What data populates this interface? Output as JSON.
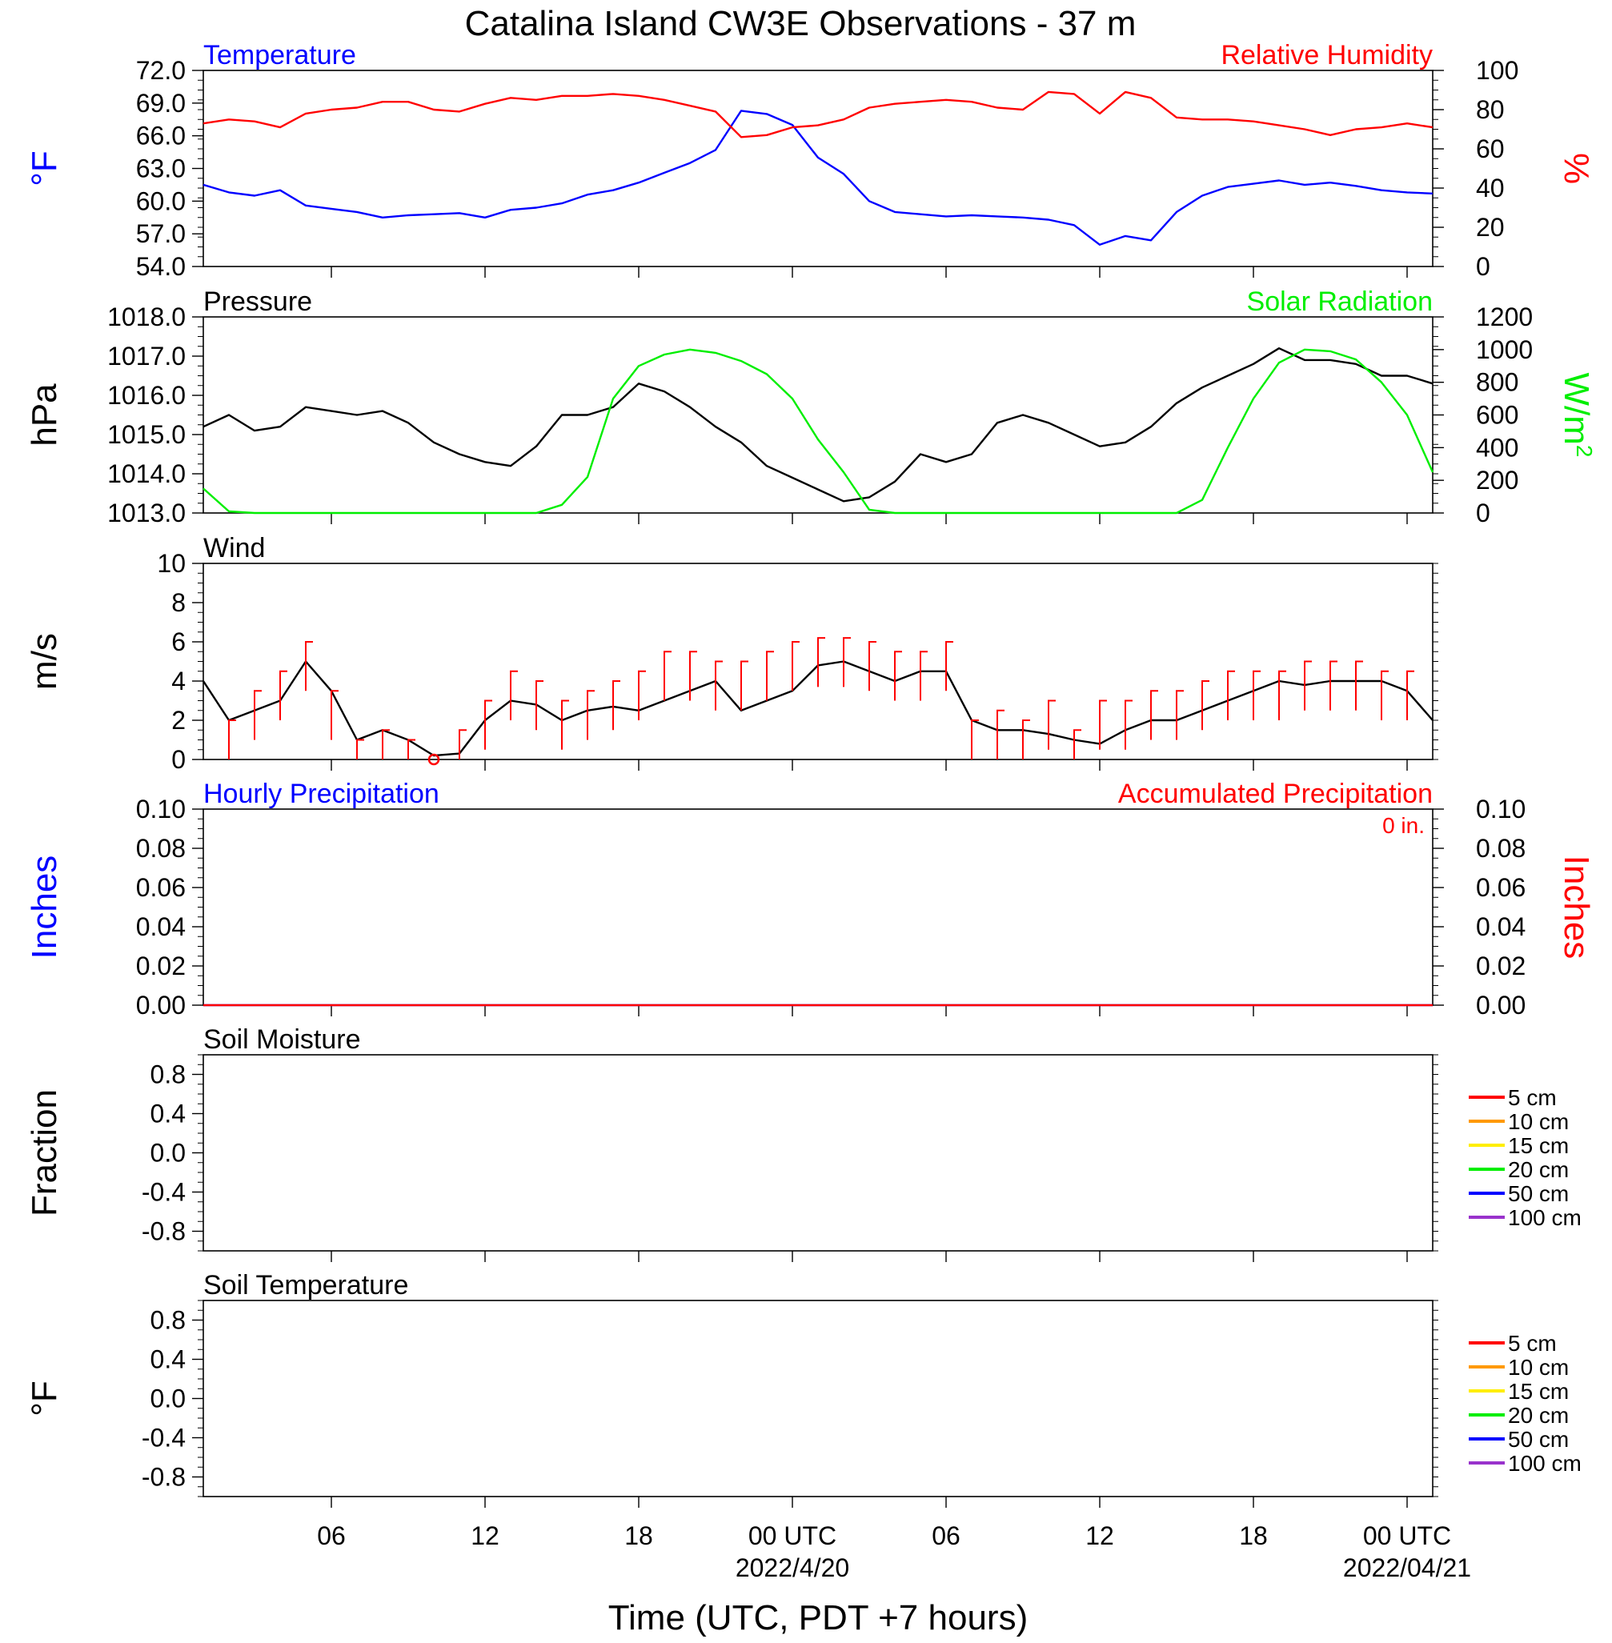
{
  "title": "Catalina Island CW3E Observations - 37 m",
  "xlabel": "Time (UTC, PDT +7 hours)",
  "x_ticks": [
    {
      "hour": 6,
      "label": "06",
      "sub": ""
    },
    {
      "hour": 12,
      "label": "12",
      "sub": ""
    },
    {
      "hour": 18,
      "label": "18",
      "sub": ""
    },
    {
      "hour": 24,
      "label": "00 UTC",
      "sub": "2022/4/20"
    },
    {
      "hour": 30,
      "label": "06",
      "sub": ""
    },
    {
      "hour": 36,
      "label": "12",
      "sub": ""
    },
    {
      "hour": 42,
      "label": "18",
      "sub": ""
    },
    {
      "hour": 48,
      "label": "00 UTC",
      "sub": "2022/04/21"
    }
  ],
  "x_range_hours": [
    1,
    49
  ],
  "colors": {
    "temperature": "#0000ff",
    "humidity": "#ff0000",
    "pressure": "#000000",
    "solar": "#00ee00",
    "wind": "#000000",
    "barb": "#ff0000",
    "accum": "#ff0000"
  },
  "chart_data": [
    {
      "type": "line",
      "panel": "temperature-humidity",
      "left_title": "Temperature",
      "right_title": "Relative Humidity",
      "ylabel": "°F",
      "ylabel_right": "%",
      "ylim": [
        54,
        72
      ],
      "ylim_right": [
        0,
        100
      ],
      "yticks": [
        "72.0",
        "69.0",
        "66.0",
        "63.0",
        "60.0",
        "57.0",
        "54.0"
      ],
      "yticks_right": [
        "100",
        "80",
        "60",
        "40",
        "20",
        "0"
      ],
      "series": [
        {
          "name": "Temperature",
          "axis": "left",
          "x_hours": [
            1,
            2,
            3,
            4,
            5,
            6,
            7,
            8,
            9,
            10,
            11,
            12,
            13,
            14,
            15,
            16,
            17,
            18,
            19,
            20,
            21,
            22,
            23,
            24,
            25,
            26,
            27,
            28,
            29,
            30,
            31,
            32,
            33,
            34,
            35,
            36,
            37,
            38,
            39,
            40,
            41,
            42,
            43,
            44,
            45,
            46,
            47,
            48,
            49
          ],
          "values": [
            61.5,
            60.8,
            60.5,
            61.0,
            59.6,
            59.3,
            59.0,
            58.5,
            58.7,
            58.8,
            58.9,
            58.5,
            59.2,
            59.4,
            59.8,
            60.6,
            61.0,
            61.7,
            62.6,
            63.5,
            64.7,
            68.3,
            68.0,
            67.0,
            64.0,
            62.5,
            60.0,
            59.0,
            58.8,
            58.6,
            58.7,
            58.6,
            58.5,
            58.3,
            57.8,
            56.0,
            56.8,
            56.4,
            59.0,
            60.5,
            61.3,
            61.6,
            61.9,
            61.5,
            61.7,
            61.4,
            61.0,
            60.8,
            60.7
          ]
        },
        {
          "name": "Relative Humidity",
          "axis": "right",
          "x_hours": [
            1,
            2,
            3,
            4,
            5,
            6,
            7,
            8,
            9,
            10,
            11,
            12,
            13,
            14,
            15,
            16,
            17,
            18,
            19,
            20,
            21,
            22,
            23,
            24,
            25,
            26,
            27,
            28,
            29,
            30,
            31,
            32,
            33,
            34,
            35,
            36,
            37,
            38,
            39,
            40,
            41,
            42,
            43,
            44,
            45,
            46,
            47,
            48,
            49
          ],
          "values": [
            73,
            75,
            74,
            71,
            78,
            80,
            81,
            84,
            84,
            80,
            79,
            83,
            86,
            85,
            87,
            87,
            88,
            87,
            85,
            82,
            79,
            66,
            67,
            71,
            72,
            75,
            81,
            83,
            84,
            85,
            84,
            81,
            80,
            89,
            88,
            78,
            89,
            86,
            76,
            75,
            75,
            74,
            72,
            70,
            67,
            70,
            71,
            73,
            71
          ]
        }
      ]
    },
    {
      "type": "line",
      "panel": "pressure-solar",
      "left_title": "Pressure",
      "right_title": "Solar Radiation",
      "ylabel": "hPa",
      "ylabel_right": "W/m",
      "ylabel_right_sup": "2",
      "ylim": [
        1013,
        1018
      ],
      "ylim_right": [
        0,
        1200
      ],
      "yticks": [
        "1018.0",
        "1017.0",
        "1016.0",
        "1015.0",
        "1014.0",
        "1013.0"
      ],
      "yticks_right": [
        "1200",
        "1000",
        "800",
        "600",
        "400",
        "200",
        "0"
      ],
      "series": [
        {
          "name": "Pressure",
          "axis": "left",
          "x_hours": [
            1,
            2,
            3,
            4,
            5,
            6,
            7,
            8,
            9,
            10,
            11,
            12,
            13,
            14,
            15,
            16,
            17,
            18,
            19,
            20,
            21,
            22,
            23,
            24,
            25,
            26,
            27,
            28,
            29,
            30,
            31,
            32,
            33,
            34,
            35,
            36,
            37,
            38,
            39,
            40,
            41,
            42,
            43,
            44,
            45,
            46,
            47,
            48,
            49
          ],
          "values": [
            1015.2,
            1015.5,
            1015.1,
            1015.2,
            1015.7,
            1015.6,
            1015.5,
            1015.6,
            1015.3,
            1014.8,
            1014.5,
            1014.3,
            1014.2,
            1014.7,
            1015.5,
            1015.5,
            1015.7,
            1016.3,
            1016.1,
            1015.7,
            1015.2,
            1014.8,
            1014.2,
            1013.9,
            1013.6,
            1013.3,
            1013.4,
            1013.8,
            1014.5,
            1014.3,
            1014.5,
            1015.3,
            1015.5,
            1015.3,
            1015.0,
            1014.7,
            1014.8,
            1015.2,
            1015.8,
            1016.2,
            1016.5,
            1016.8,
            1017.2,
            1016.9,
            1016.9,
            1016.8,
            1016.5,
            1016.5,
            1016.3
          ]
        },
        {
          "name": "Solar Radiation",
          "axis": "right",
          "x_hours": [
            1,
            2,
            3,
            4,
            5,
            6,
            7,
            8,
            9,
            10,
            11,
            12,
            13,
            14,
            15,
            16,
            17,
            18,
            19,
            20,
            21,
            22,
            23,
            24,
            25,
            26,
            27,
            28,
            29,
            30,
            31,
            32,
            33,
            34,
            35,
            36,
            37,
            38,
            39,
            40,
            41,
            42,
            43,
            44,
            45,
            46,
            47,
            48,
            49
          ],
          "values": [
            150,
            10,
            0,
            0,
            0,
            0,
            0,
            0,
            0,
            0,
            0,
            0,
            0,
            0,
            50,
            220,
            700,
            900,
            970,
            1000,
            980,
            930,
            850,
            700,
            450,
            250,
            20,
            0,
            0,
            0,
            0,
            0,
            0,
            0,
            0,
            0,
            0,
            0,
            0,
            80,
            400,
            700,
            920,
            1000,
            990,
            940,
            800,
            600,
            250
          ]
        }
      ]
    },
    {
      "type": "line",
      "panel": "wind",
      "left_title": "Wind",
      "ylabel": "m/s",
      "ylim": [
        0,
        10
      ],
      "yticks": [
        "10",
        "8",
        "6",
        "4",
        "2",
        "0"
      ],
      "series": [
        {
          "name": "Wind",
          "axis": "left",
          "x_hours": [
            1,
            2,
            3,
            4,
            5,
            6,
            7,
            8,
            9,
            10,
            11,
            12,
            13,
            14,
            15,
            16,
            17,
            18,
            19,
            20,
            21,
            22,
            23,
            24,
            25,
            26,
            27,
            28,
            29,
            30,
            31,
            32,
            33,
            34,
            35,
            36,
            37,
            38,
            39,
            40,
            41,
            42,
            43,
            44,
            45,
            46,
            47,
            48,
            49
          ],
          "values": [
            4.0,
            2.0,
            2.5,
            3.0,
            5.0,
            3.5,
            1.0,
            1.5,
            1.0,
            0.2,
            0.3,
            2.0,
            3.0,
            2.8,
            2.0,
            2.5,
            2.7,
            2.5,
            3.0,
            3.5,
            4.0,
            2.5,
            3.0,
            3.5,
            4.8,
            5.0,
            4.5,
            4.0,
            4.5,
            4.5,
            2.0,
            1.5,
            1.5,
            1.3,
            1.0,
            0.8,
            1.5,
            2.0,
            2.0,
            2.5,
            3.0,
            3.5,
            4.0,
            3.8,
            4.0,
            4.0,
            4.0,
            3.5,
            2.0
          ]
        },
        {
          "name": "Wind barbs",
          "axis": "left",
          "marks": "barb",
          "x_hours": [
            2,
            3,
            4,
            5,
            6,
            7,
            8,
            9,
            10,
            11,
            12,
            13,
            14,
            15,
            16,
            17,
            18,
            19,
            20,
            21,
            22,
            23,
            24,
            25,
            26,
            27,
            28,
            29,
            30,
            31,
            32,
            33,
            34,
            35,
            36,
            37,
            38,
            39,
            40,
            41,
            42,
            43,
            44,
            45,
            46,
            47,
            48
          ],
          "values": [
            2.0,
            3.5,
            4.5,
            6.0,
            3.5,
            1.0,
            1.5,
            1.0,
            0.0,
            1.5,
            3.0,
            4.5,
            4.0,
            3.0,
            3.5,
            4.0,
            4.5,
            5.5,
            5.5,
            5.0,
            5.0,
            5.5,
            6.0,
            6.2,
            6.2,
            6.0,
            5.5,
            5.5,
            6.0,
            2.0,
            2.5,
            2.0,
            3.0,
            1.5,
            3.0,
            3.0,
            3.5,
            3.5,
            4.0,
            4.5,
            4.5,
            4.5,
            5.0,
            5.0,
            5.0,
            4.5,
            4.5
          ]
        }
      ],
      "calm_marker_hour": 10
    },
    {
      "type": "line",
      "panel": "precipitation",
      "left_title": "Hourly Precipitation",
      "right_title": "Accumulated Precipitation",
      "total_label": "0 in.",
      "ylabel": "Inches",
      "ylabel_right": "Inches",
      "ylim": [
        0,
        0.1
      ],
      "ylim_right": [
        0,
        0.1
      ],
      "yticks": [
        "0.10",
        "0.08",
        "0.06",
        "0.04",
        "0.02",
        "0.00"
      ],
      "yticks_right": [
        "0.10",
        "0.08",
        "0.06",
        "0.04",
        "0.02",
        "0.00"
      ],
      "series": [
        {
          "name": "Hourly Precipitation",
          "axis": "left",
          "x_hours": [
            1,
            49
          ],
          "values": [
            0,
            0
          ]
        },
        {
          "name": "Accumulated Precipitation",
          "axis": "right",
          "x_hours": [
            1,
            49
          ],
          "values": [
            0,
            0
          ]
        }
      ]
    },
    {
      "type": "line",
      "panel": "soil-moisture",
      "left_title": "Soil Moisture",
      "ylabel": "Fraction",
      "ylim": [
        -1.0,
        1.0
      ],
      "yticks": [
        "0.8",
        "0.4",
        "0.0",
        "-0.4",
        "-0.8"
      ],
      "legend": [
        "5 cm",
        "10 cm",
        "15 cm",
        "20 cm",
        "50 cm",
        "100 cm"
      ],
      "legend_colors": [
        "#ff0000",
        "#ff9900",
        "#ffee00",
        "#00ee00",
        "#0000ff",
        "#9933cc"
      ],
      "series": []
    },
    {
      "type": "line",
      "panel": "soil-temperature",
      "left_title": "Soil Temperature",
      "ylabel": "°F",
      "ylim": [
        -1.0,
        1.0
      ],
      "yticks": [
        "0.8",
        "0.4",
        "0.0",
        "-0.4",
        "-0.8"
      ],
      "legend": [
        "5 cm",
        "10 cm",
        "15 cm",
        "20 cm",
        "50 cm",
        "100 cm"
      ],
      "legend_colors": [
        "#ff0000",
        "#ff9900",
        "#ffee00",
        "#00ee00",
        "#0000ff",
        "#9933cc"
      ],
      "series": []
    }
  ]
}
